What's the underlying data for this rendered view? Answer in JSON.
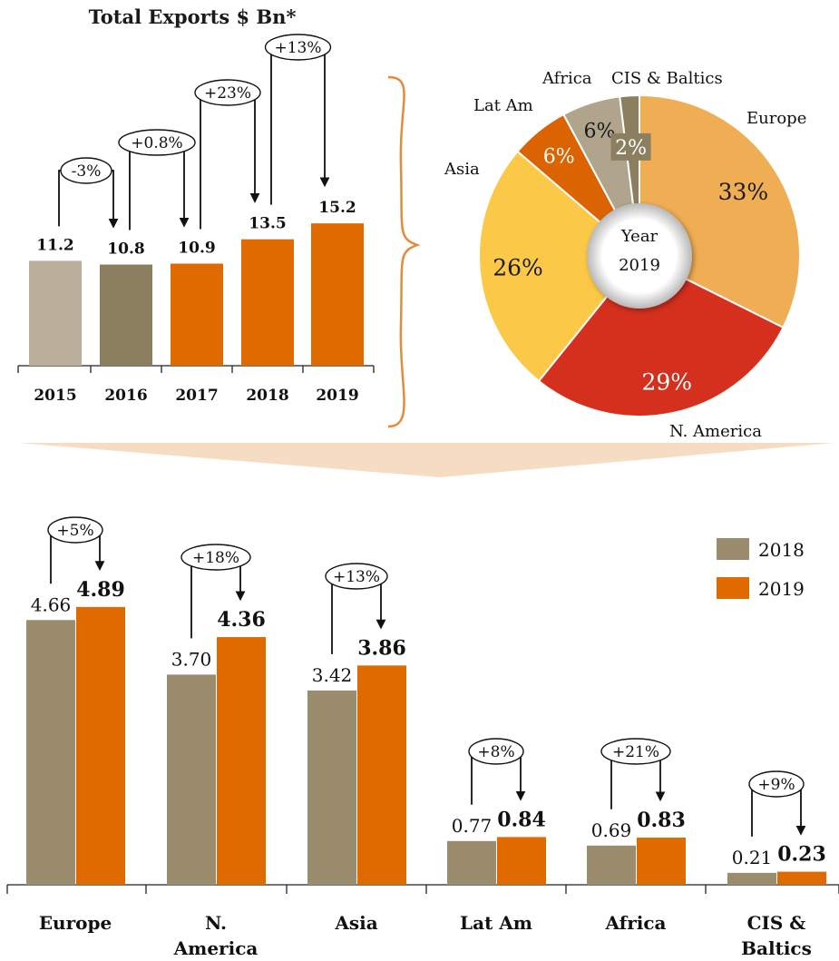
{
  "colors": {
    "y2015": "#B9AF9A",
    "y2016": "#8B7E5F",
    "orange": "#DF6A00",
    "gray2018": "#9A8C6C",
    "brace": "#E38A3C",
    "europe": "#EFAE53",
    "namerica": "#D52F1D",
    "asia": "#FCC847",
    "latam": "#DB6302",
    "africa": "#B0A48C",
    "cis": "#8C7F60",
    "band": "#F7DCC4"
  },
  "chart_data": [
    {
      "type": "bar",
      "title": "Total Exports $ Bn*",
      "categories": [
        "2015",
        "2016",
        "2017",
        "2018",
        "2019"
      ],
      "values": [
        11.2,
        10.8,
        10.9,
        13.5,
        15.2
      ],
      "value_labels": [
        "11.2",
        "10.8",
        "10.9",
        "13.5",
        "15.2"
      ],
      "changes": [
        {
          "from": "2015",
          "to": "2016",
          "label": "-3%"
        },
        {
          "from": "2016",
          "to": "2017",
          "label": "+0.8%"
        },
        {
          "from": "2017",
          "to": "2018",
          "label": "+23%"
        },
        {
          "from": "2018",
          "to": "2019",
          "label": "+13%"
        }
      ],
      "xlabel": "",
      "ylabel": "",
      "grid": false
    },
    {
      "type": "pie",
      "center_label": [
        "Year",
        "2019"
      ],
      "slices": [
        {
          "name": "Europe",
          "value": 33,
          "label": "33%"
        },
        {
          "name": "N. America",
          "value": 29,
          "label": "29%"
        },
        {
          "name": "Asia",
          "value": 26,
          "label": "26%"
        },
        {
          "name": "Lat Am",
          "value": 6,
          "label": "6%"
        },
        {
          "name": "Africa",
          "value": 6,
          "label": "6%"
        },
        {
          "name": "CIS & Baltics",
          "value": 2,
          "label": "2%"
        }
      ]
    },
    {
      "type": "bar",
      "categories": [
        "Europe",
        "N. America",
        "Asia",
        "Lat Am",
        "Africa",
        "CIS & Baltics"
      ],
      "category_lines": [
        [
          "Europe"
        ],
        [
          "N.",
          "America"
        ],
        [
          "Asia"
        ],
        [
          "Lat Am"
        ],
        [
          "Africa"
        ],
        [
          "CIS &",
          "Baltics"
        ]
      ],
      "series": [
        {
          "name": "2018",
          "values": [
            4.66,
            3.7,
            3.42,
            0.77,
            0.69,
            0.21
          ],
          "labels": [
            "4.66",
            "3.70",
            "3.42",
            "0.77",
            "0.69",
            "0.21"
          ]
        },
        {
          "name": "2019",
          "values": [
            4.89,
            4.36,
            3.86,
            0.84,
            0.83,
            0.23
          ],
          "labels": [
            "4.89",
            "4.36",
            "3.86",
            "0.84",
            "0.83",
            "0.23"
          ]
        }
      ],
      "changes": [
        "+5%",
        "+18%",
        "+13%",
        "+8%",
        "+21%",
        "+9%"
      ],
      "legend": "top-right",
      "grid": false
    }
  ]
}
